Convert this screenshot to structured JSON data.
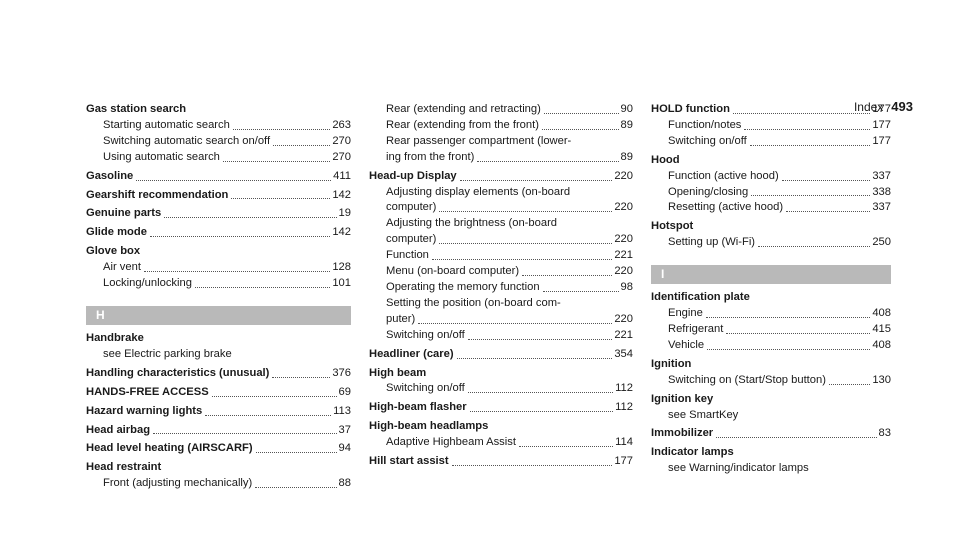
{
  "header": {
    "title": "Index",
    "page": "493"
  },
  "columns": [
    {
      "items": [
        {
          "t": "term",
          "label": "Gas station search"
        },
        {
          "t": "sub",
          "label": "Starting automatic search",
          "page": "263"
        },
        {
          "t": "sub",
          "label": "Switching automatic search on/off",
          "page": "270"
        },
        {
          "t": "sub",
          "label": "Using automatic search",
          "page": "270"
        },
        {
          "t": "bold",
          "label": "Gasoline",
          "page": "411"
        },
        {
          "t": "bold",
          "label": "Gearshift recommendation",
          "page": "142"
        },
        {
          "t": "bold",
          "label": "Genuine parts",
          "page": "19"
        },
        {
          "t": "bold",
          "label": "Glide mode",
          "page": "142"
        },
        {
          "t": "term",
          "label": "Glove box"
        },
        {
          "t": "sub",
          "label": "Air vent",
          "page": "128"
        },
        {
          "t": "sub",
          "label": "Locking/unlocking",
          "page": "101"
        },
        {
          "t": "letter",
          "label": "H"
        },
        {
          "t": "term",
          "label": "Handbrake"
        },
        {
          "t": "subnopg",
          "label": "see Electric parking brake"
        },
        {
          "t": "bold",
          "label": "Handling characteristics (unusual)",
          "page": "376"
        },
        {
          "t": "bold",
          "label": "HANDS-FREE ACCESS",
          "page": "69"
        },
        {
          "t": "bold",
          "label": "Hazard warning lights",
          "page": "113"
        },
        {
          "t": "bold",
          "label": "Head airbag",
          "page": "37"
        },
        {
          "t": "bold",
          "label": "Head level heating (AIRSCARF)",
          "page": "94"
        },
        {
          "t": "term",
          "label": "Head restraint"
        },
        {
          "t": "sub",
          "label": "Front (adjusting mechanically)",
          "page": "88"
        }
      ]
    },
    {
      "items": [
        {
          "t": "sub",
          "label": "Rear (extending and retracting)",
          "page": "90"
        },
        {
          "t": "sub",
          "label": "Rear (extending from the front)",
          "page": "89"
        },
        {
          "t": "subnopg",
          "label": "Rear passenger compartment (lower-"
        },
        {
          "t": "sub",
          "label": "ing from the front)",
          "page": "89"
        },
        {
          "t": "bold",
          "label": "Head-up Display",
          "page": "220"
        },
        {
          "t": "subnopg",
          "label": "Adjusting display elements (on-board"
        },
        {
          "t": "sub",
          "label": "computer)",
          "page": "220"
        },
        {
          "t": "subnopg",
          "label": "Adjusting the brightness (on-board"
        },
        {
          "t": "sub",
          "label": "computer)",
          "page": "220"
        },
        {
          "t": "sub",
          "label": "Function",
          "page": "221"
        },
        {
          "t": "sub",
          "label": "Menu (on-board computer)",
          "page": "220"
        },
        {
          "t": "sub",
          "label": "Operating the memory function",
          "page": "98"
        },
        {
          "t": "subnopg",
          "label": "Setting the position (on-board com-"
        },
        {
          "t": "sub",
          "label": "puter)",
          "page": "220"
        },
        {
          "t": "sub",
          "label": "Switching on/off",
          "page": "221"
        },
        {
          "t": "bold",
          "label": "Headliner (care)",
          "page": "354"
        },
        {
          "t": "term",
          "label": "High beam"
        },
        {
          "t": "sub",
          "label": "Switching on/off",
          "page": "112"
        },
        {
          "t": "bold",
          "label": "High-beam flasher",
          "page": "112"
        },
        {
          "t": "term",
          "label": "High-beam headlamps"
        },
        {
          "t": "sub",
          "label": "Adaptive Highbeam Assist",
          "page": "114"
        },
        {
          "t": "bold",
          "label": "Hill start assist",
          "page": "177"
        }
      ]
    },
    {
      "items": [
        {
          "t": "bold",
          "label": "HOLD function",
          "page": "177"
        },
        {
          "t": "sub",
          "label": "Function/notes",
          "page": "177"
        },
        {
          "t": "sub",
          "label": "Switching on/off",
          "page": "177"
        },
        {
          "t": "term",
          "label": "Hood"
        },
        {
          "t": "sub",
          "label": "Function (active hood)",
          "page": "337"
        },
        {
          "t": "sub",
          "label": "Opening/closing",
          "page": "338"
        },
        {
          "t": "sub",
          "label": "Resetting (active hood)",
          "page": "337"
        },
        {
          "t": "term",
          "label": "Hotspot"
        },
        {
          "t": "sub",
          "label": "Setting up (Wi-Fi)",
          "page": "250"
        },
        {
          "t": "letter",
          "label": "I"
        },
        {
          "t": "term",
          "label": "Identification plate"
        },
        {
          "t": "sub",
          "label": "Engine",
          "page": "408"
        },
        {
          "t": "sub",
          "label": "Refrigerant",
          "page": "415"
        },
        {
          "t": "sub",
          "label": "Vehicle",
          "page": "408"
        },
        {
          "t": "term",
          "label": "Ignition"
        },
        {
          "t": "sub",
          "label": "Switching on (Start/Stop button)",
          "page": "130"
        },
        {
          "t": "term",
          "label": "Ignition key"
        },
        {
          "t": "subnopg",
          "label": "see SmartKey"
        },
        {
          "t": "bold",
          "label": "Immobilizer",
          "page": "83"
        },
        {
          "t": "term",
          "label": "Indicator lamps"
        },
        {
          "t": "subnopg",
          "label": "see Warning/indicator lamps"
        }
      ]
    }
  ]
}
